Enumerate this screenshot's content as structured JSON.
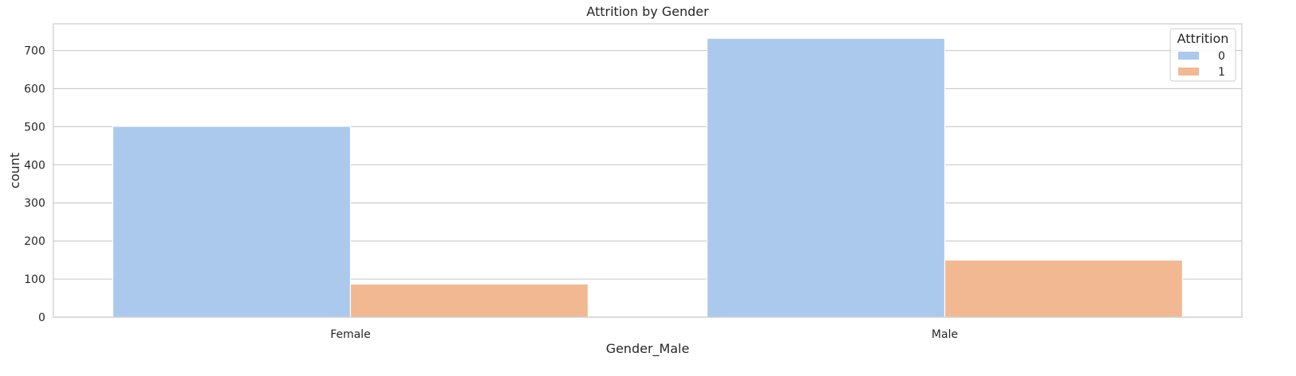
{
  "chart_data": {
    "type": "bar",
    "title": "Attrition by Gender",
    "xlabel": "Gender_Male",
    "ylabel": "count",
    "categories": [
      "Female",
      "Male"
    ],
    "series": [
      {
        "name": "0",
        "values": [
          501,
          732
        ],
        "color": "#abc9ed"
      },
      {
        "name": "1",
        "values": [
          87,
          150
        ],
        "color": "#f1b891"
      }
    ],
    "ylim": [
      0,
      770
    ],
    "yticks": [
      0,
      100,
      200,
      300,
      400,
      500,
      600,
      700
    ],
    "grid": true,
    "legend": {
      "title": "Attrition",
      "placement": "top-right"
    }
  }
}
